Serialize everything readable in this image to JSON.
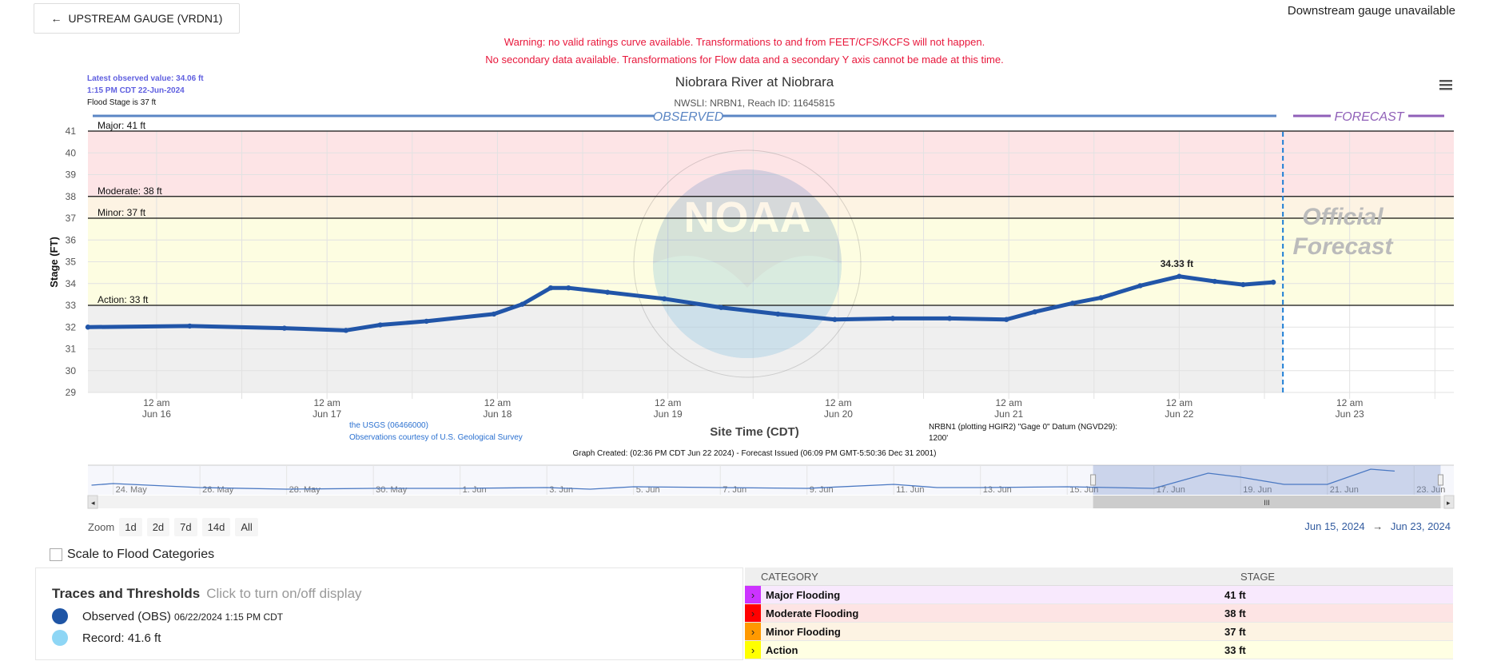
{
  "header": {
    "upstream_label": "UPSTREAM GAUGE (VRDN1)",
    "downstream_text": "Downstream gauge unavailable",
    "warnings": [
      "Warning: no valid ratings curve available. Transformations to and from FEET/CFS/KCFS will not happen.",
      "No secondary data available. Transformations for Flow data and a secondary Y axis cannot be made at this time."
    ]
  },
  "chart_data": {
    "type": "line",
    "title": "Niobrara River at Niobrara",
    "subtitle": "NWSLI: NRBN1, Reach ID: 11645815",
    "latest_value": "Latest observed value: 34.06 ft",
    "latest_time": "1:15 PM CDT 22-Jun-2024",
    "flood_stage_note": "Flood Stage is 37 ft",
    "observed_label": "OBSERVED",
    "forecast_label": "FORECAST",
    "official_forecast": [
      "Official",
      "Forecast"
    ],
    "ylabel": "Stage (FT)",
    "xlabel": "Site Time (CDT)",
    "ylim": [
      29,
      41
    ],
    "yticks": [
      29,
      30,
      31,
      32,
      33,
      34,
      35,
      36,
      37,
      38,
      39,
      40,
      41
    ],
    "xlim": [
      "2024-06-15T14:20",
      "2024-06-23T14:40"
    ],
    "xticks": [
      {
        "t": "2024-06-16T00:00",
        "l1": "12 am",
        "l2": "Jun 16"
      },
      {
        "t": "2024-06-17T00:00",
        "l1": "12 am",
        "l2": "Jun 17"
      },
      {
        "t": "2024-06-18T00:00",
        "l1": "12 am",
        "l2": "Jun 18"
      },
      {
        "t": "2024-06-19T00:00",
        "l1": "12 am",
        "l2": "Jun 19"
      },
      {
        "t": "2024-06-20T00:00",
        "l1": "12 am",
        "l2": "Jun 20"
      },
      {
        "t": "2024-06-21T00:00",
        "l1": "12 am",
        "l2": "Jun 21"
      },
      {
        "t": "2024-06-22T00:00",
        "l1": "12 am",
        "l2": "Jun 22"
      },
      {
        "t": "2024-06-23T00:00",
        "l1": "12 am",
        "l2": "Jun 23"
      }
    ],
    "forecast_start": "2024-06-22T14:36",
    "grid": true,
    "thresholds": [
      {
        "label": "Major: 41 ft",
        "value": 41
      },
      {
        "label": "Moderate: 38 ft",
        "value": 38
      },
      {
        "label": "Minor: 37 ft",
        "value": 37
      },
      {
        "label": "Action: 33 ft",
        "value": 33
      }
    ],
    "band_colors": {
      "major": "#fde4e6",
      "moderate": "#fdf3e3",
      "minor": "#fdfde1",
      "below": "#efefef"
    },
    "peak_label": {
      "t": "2024-06-22T00:00",
      "value": 34.33,
      "text": "34.33 ft"
    },
    "series": [
      {
        "name": "Observed (OBS)",
        "color": "#2155a8",
        "x": [
          "2024-06-15T14:20",
          "2024-06-16T04:40",
          "2024-06-16T18:00",
          "2024-06-17T02:40",
          "2024-06-17T07:30",
          "2024-06-17T14:00",
          "2024-06-17T23:30",
          "2024-06-18T03:30",
          "2024-06-18T07:30",
          "2024-06-18T10:00",
          "2024-06-18T15:30",
          "2024-06-18T23:30",
          "2024-06-19T07:30",
          "2024-06-19T15:30",
          "2024-06-19T23:30",
          "2024-06-20T07:40",
          "2024-06-20T15:40",
          "2024-06-20T23:40",
          "2024-06-21T03:40",
          "2024-06-21T09:00",
          "2024-06-21T13:00",
          "2024-06-21T18:30",
          "2024-06-22T00:00",
          "2024-06-22T05:00",
          "2024-06-22T09:00",
          "2024-06-22T13:15"
        ],
        "y": [
          32.0,
          32.05,
          31.95,
          31.85,
          32.1,
          32.27,
          32.6,
          33.05,
          33.8,
          33.8,
          33.6,
          33.3,
          32.9,
          32.6,
          32.35,
          32.4,
          32.4,
          32.35,
          32.7,
          33.1,
          33.35,
          33.9,
          34.33,
          34.1,
          33.95,
          34.06
        ]
      }
    ],
    "source_links": [
      "the USGS (06466000)",
      "Observations courtesy of U.S. Geological Survey"
    ],
    "datum_note": [
      "NRBN1 (plotting HGIR2) \"Gage 0\" Datum (NGVD29):",
      "1200'"
    ],
    "graph_created": "Graph Created: (02:36 PM CDT Jun 22 2024) - Forecast Issued (06:09 PM GMT-5:50:36 Dec 31 2001)",
    "watermark": "NOAA",
    "watermark_ring": "NATIONAL OCEANIC AND ATMOSPHERIC ADMINISTRATION · U.S. DEPARTMENT OF COMMERCE"
  },
  "navigator": {
    "xlim": [
      "2024-05-23T10:00",
      "2024-06-23T22:00"
    ],
    "selection": [
      "2024-06-15T14:20",
      "2024-06-23T14:40"
    ],
    "ticks": [
      "24. May",
      "26. May",
      "28. May",
      "30. May",
      "1. Jun",
      "3. Jun",
      "5. Jun",
      "7. Jun",
      "9. Jun",
      "11. Jun",
      "13. Jun",
      "15. Jun",
      "17. Jun",
      "19. Jun",
      "21. Jun",
      "23. Jun"
    ],
    "tick_dates": [
      "2024-05-24",
      "2024-05-26",
      "2024-05-28",
      "2024-05-30",
      "2024-06-01",
      "2024-06-03",
      "2024-06-05",
      "2024-06-07",
      "2024-06-09",
      "2024-06-11",
      "2024-06-13",
      "2024-06-15",
      "2024-06-17",
      "2024-06-19",
      "2024-06-21",
      "2024-06-23"
    ],
    "x": [
      "2024-05-23T12:00",
      "2024-05-24T00:00",
      "2024-05-26T00:00",
      "2024-05-28T00:00",
      "2024-05-30T00:00",
      "2024-06-01T00:00",
      "2024-06-03T00:00",
      "2024-06-04T00:00",
      "2024-06-05T00:00",
      "2024-06-07T00:00",
      "2024-06-09T00:00",
      "2024-06-11T00:00",
      "2024-06-12T00:00",
      "2024-06-13T00:00",
      "2024-06-15T00:00",
      "2024-06-17T00:00",
      "2024-06-18T06:00",
      "2024-06-19T00:00",
      "2024-06-20T00:00",
      "2024-06-21T00:00",
      "2024-06-22T00:00",
      "2024-06-22T13:15"
    ],
    "y": [
      32.3,
      32.5,
      32.0,
      31.8,
      31.9,
      31.9,
      32.0,
      31.8,
      32.1,
      32.0,
      31.9,
      32.4,
      32.0,
      32.0,
      32.1,
      31.9,
      33.8,
      33.3,
      32.4,
      32.4,
      34.3,
      34.06
    ]
  },
  "controls": {
    "zoom_label": "Zoom",
    "zoom_buttons": [
      "1d",
      "2d",
      "7d",
      "14d",
      "All"
    ],
    "range_from": "Jun 15, 2024",
    "range_arrow": "→",
    "range_to": "Jun 23, 2024",
    "scale_option": "Scale to Flood Categories"
  },
  "traces": {
    "title": "Traces and Thresholds",
    "hint": "Click to turn on/off display",
    "items": [
      {
        "label": "Observed (OBS)",
        "detail": "06/22/2024 1:15 PM CDT",
        "color": "#1f55a5"
      },
      {
        "label": "Record: 41.6 ft",
        "detail": "",
        "color": "#8ed6f5"
      }
    ]
  },
  "categories": {
    "headers": [
      "CATEGORY",
      "STAGE"
    ],
    "rows": [
      {
        "name": "Major Flooding",
        "stage": "41 ft",
        "color": "#cc33ff",
        "bg": "#f8e9fd"
      },
      {
        "name": "Moderate Flooding",
        "stage": "38 ft",
        "color": "#ff0000",
        "bg": "#fde4e4"
      },
      {
        "name": "Minor Flooding",
        "stage": "37 ft",
        "color": "#ff9900",
        "bg": "#fdf3e3"
      },
      {
        "name": "Action",
        "stage": "33 ft",
        "color": "#ffff00",
        "bg": "#ffffe3"
      }
    ]
  }
}
